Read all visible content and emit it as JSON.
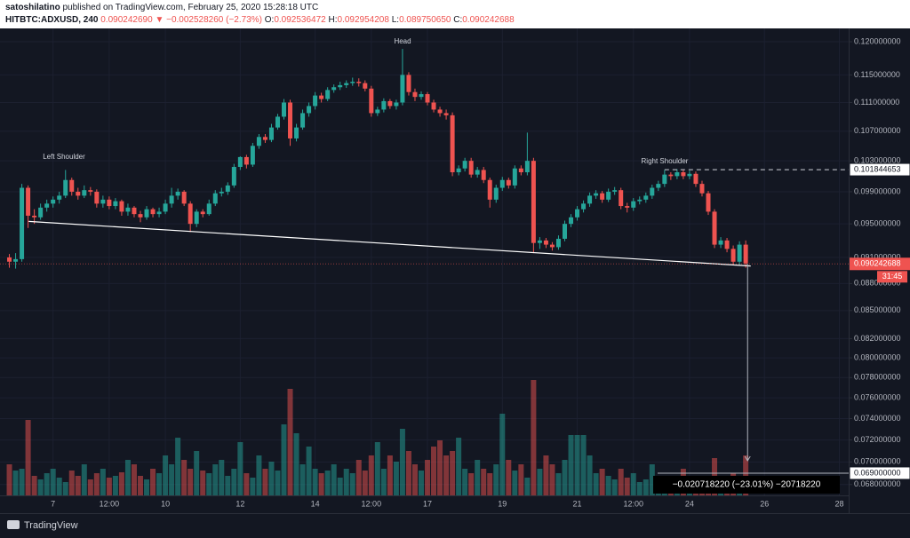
{
  "header": {
    "author": "satoshilatino",
    "published": "published on TradingView.com, February 25, 2020 15:28:18 UTC",
    "symbol": "HITBTC:ADXUSD, 240",
    "last": "0.090242690",
    "arrow": "▼",
    "change": "−0.002528260 (−2.73%)",
    "o_label": "O:",
    "o": "0.092536472",
    "h_label": "H:",
    "h": "0.092954208",
    "l_label": "L:",
    "l": "0.089750650",
    "c_label": "C:",
    "c": "0.090242688"
  },
  "chart_data": {
    "type": "candlestick",
    "log_scale": true,
    "grid": true,
    "up_color": "#26a69a",
    "down_color": "#ef5350",
    "xlim": [
      -1.5,
      134.5
    ],
    "xticks": [
      7,
      {
        "value": 16,
        "label": "12:00"
      },
      {
        "value": 25,
        "label": "10"
      },
      {
        "value": 37,
        "label": "12"
      },
      {
        "value": 49,
        "label": "14"
      },
      {
        "value": 58,
        "label": "12:00"
      },
      {
        "value": 67,
        "label": "17"
      },
      {
        "value": 79,
        "label": "19"
      },
      {
        "value": 91,
        "label": "21"
      },
      {
        "value": 100,
        "label": "12:00"
      },
      {
        "value": 109,
        "label": "24"
      },
      {
        "value": 121,
        "label": "26"
      },
      {
        "value": 133,
        "label": "28"
      }
    ],
    "ylim": [
      0.06706,
      0.12207
    ],
    "yticks": [
      {
        "value": 0.12,
        "label": "0.120000000"
      },
      {
        "value": 0.115,
        "label": "0.115000000"
      },
      {
        "value": 0.111,
        "label": "0.111000000"
      },
      {
        "value": 0.107,
        "label": "0.107000000"
      },
      {
        "value": 0.103,
        "label": "0.103000000"
      },
      {
        "value": 0.099,
        "label": "0.099000000"
      },
      {
        "value": 0.095,
        "label": "0.095000000"
      },
      {
        "value": 0.091,
        "label": "0.091000000"
      },
      {
        "value": 0.088,
        "label": "0.088000000"
      },
      {
        "value": 0.085,
        "label": "0.085000000"
      },
      {
        "value": 0.082,
        "label": "0.082000000"
      },
      {
        "value": 0.08,
        "label": "0.080000000"
      },
      {
        "value": 0.078,
        "label": "0.078000000"
      },
      {
        "value": 0.076,
        "label": "0.076000000"
      },
      {
        "value": 0.074,
        "label": "0.074000000"
      },
      {
        "value": 0.072,
        "label": "0.072000000"
      },
      {
        "value": 0.07,
        "label": "0.070000000"
      },
      {
        "value": 0.068,
        "label": "0.068000000"
      }
    ],
    "ohlc": [
      [
        0.091,
        0.0914,
        0.0898,
        0.0905
      ],
      [
        0.0905,
        0.0915,
        0.0897,
        0.0908
      ],
      [
        0.0908,
        0.1,
        0.0905,
        0.0995
      ],
      [
        0.0995,
        0.0998,
        0.0945,
        0.096
      ],
      [
        0.096,
        0.0968,
        0.095,
        0.0958
      ],
      [
        0.0958,
        0.0975,
        0.0955,
        0.097
      ],
      [
        0.097,
        0.098,
        0.0965,
        0.0975
      ],
      [
        0.0975,
        0.0984,
        0.097,
        0.098
      ],
      [
        0.098,
        0.099,
        0.0975,
        0.0985
      ],
      [
        0.0985,
        0.1018,
        0.0982,
        0.1005
      ],
      [
        0.1005,
        0.1008,
        0.0985,
        0.099
      ],
      [
        0.099,
        0.0995,
        0.098,
        0.0985
      ],
      [
        0.0985,
        0.0998,
        0.0982,
        0.0992
      ],
      [
        0.0992,
        0.0996,
        0.0985,
        0.099
      ],
      [
        0.099,
        0.0993,
        0.097,
        0.0975
      ],
      [
        0.0975,
        0.0985,
        0.097,
        0.098
      ],
      [
        0.098,
        0.0984,
        0.0968,
        0.0972
      ],
      [
        0.0972,
        0.0982,
        0.0968,
        0.0978
      ],
      [
        0.0978,
        0.098,
        0.096,
        0.0965
      ],
      [
        0.0965,
        0.0975,
        0.096,
        0.097
      ],
      [
        0.097,
        0.0972,
        0.0958,
        0.0962
      ],
      [
        0.0962,
        0.0966,
        0.0952,
        0.0958
      ],
      [
        0.0958,
        0.0972,
        0.0955,
        0.0968
      ],
      [
        0.0968,
        0.097,
        0.0958,
        0.0962
      ],
      [
        0.0962,
        0.097,
        0.0958,
        0.0965
      ],
      [
        0.0965,
        0.098,
        0.0962,
        0.0975
      ],
      [
        0.0975,
        0.0995,
        0.097,
        0.0985
      ],
      [
        0.0985,
        0.0994,
        0.098,
        0.099
      ],
      [
        0.099,
        0.0992,
        0.0972,
        0.0975
      ],
      [
        0.0975,
        0.0978,
        0.094,
        0.095
      ],
      [
        0.095,
        0.0968,
        0.0946,
        0.0965
      ],
      [
        0.0965,
        0.0968,
        0.0958,
        0.0962
      ],
      [
        0.0962,
        0.098,
        0.096,
        0.0975
      ],
      [
        0.0975,
        0.0992,
        0.0972,
        0.0988
      ],
      [
        0.0988,
        0.0995,
        0.0984,
        0.099
      ],
      [
        0.099,
        0.1002,
        0.0986,
        0.0998
      ],
      [
        0.0998,
        0.1026,
        0.0995,
        0.1022
      ],
      [
        0.1022,
        0.1036,
        0.1018,
        0.1035
      ],
      [
        0.1035,
        0.1038,
        0.102,
        0.1025
      ],
      [
        0.1025,
        0.1054,
        0.1022,
        0.105
      ],
      [
        0.105,
        0.1066,
        0.1046,
        0.1062
      ],
      [
        0.1062,
        0.1066,
        0.1054,
        0.1058
      ],
      [
        0.1058,
        0.108,
        0.1055,
        0.1075
      ],
      [
        0.1075,
        0.1094,
        0.1072,
        0.109
      ],
      [
        0.109,
        0.1115,
        0.1086,
        0.111
      ],
      [
        0.111,
        0.1114,
        0.105,
        0.106
      ],
      [
        0.106,
        0.108,
        0.1056,
        0.1075
      ],
      [
        0.1075,
        0.11,
        0.1072,
        0.1095
      ],
      [
        0.1095,
        0.111,
        0.109,
        0.1105
      ],
      [
        0.1105,
        0.1125,
        0.11,
        0.112
      ],
      [
        0.112,
        0.1124,
        0.111,
        0.1115
      ],
      [
        0.1115,
        0.1132,
        0.1112,
        0.1128
      ],
      [
        0.1128,
        0.1136,
        0.1124,
        0.1132
      ],
      [
        0.1132,
        0.114,
        0.1128,
        0.1135
      ],
      [
        0.1135,
        0.1142,
        0.1131,
        0.1138
      ],
      [
        0.1138,
        0.1146,
        0.1134,
        0.114
      ],
      [
        0.114,
        0.1145,
        0.1133,
        0.1138
      ],
      [
        0.1138,
        0.1142,
        0.1126,
        0.113
      ],
      [
        0.113,
        0.1134,
        0.109,
        0.1095
      ],
      [
        0.1095,
        0.1104,
        0.1091,
        0.11
      ],
      [
        0.11,
        0.1116,
        0.1096,
        0.1112
      ],
      [
        0.1112,
        0.1115,
        0.1101,
        0.1105
      ],
      [
        0.1105,
        0.1114,
        0.11,
        0.111
      ],
      [
        0.111,
        0.1189,
        0.1106,
        0.115
      ],
      [
        0.115,
        0.1154,
        0.112,
        0.1125
      ],
      [
        0.1125,
        0.113,
        0.1112,
        0.1118
      ],
      [
        0.1118,
        0.1126,
        0.1114,
        0.1122
      ],
      [
        0.1122,
        0.1125,
        0.1106,
        0.111
      ],
      [
        0.111,
        0.1114,
        0.1096,
        0.11
      ],
      [
        0.11,
        0.1104,
        0.109,
        0.1095
      ],
      [
        0.1095,
        0.11,
        0.1086,
        0.1092
      ],
      [
        0.1092,
        0.1096,
        0.101,
        0.1015
      ],
      [
        0.1015,
        0.1024,
        0.1011,
        0.102
      ],
      [
        0.102,
        0.1034,
        0.1016,
        0.103
      ],
      [
        0.103,
        0.1034,
        0.1008,
        0.1012
      ],
      [
        0.1012,
        0.1022,
        0.1008,
        0.1018
      ],
      [
        0.1018,
        0.1022,
        0.1001,
        0.1005
      ],
      [
        0.1005,
        0.1008,
        0.097,
        0.098
      ],
      [
        0.098,
        0.0999,
        0.0976,
        0.0995
      ],
      [
        0.0995,
        0.1009,
        0.0991,
        0.1005
      ],
      [
        0.1005,
        0.1008,
        0.0994,
        0.0998
      ],
      [
        0.0998,
        0.1024,
        0.0994,
        0.102
      ],
      [
        0.102,
        0.1024,
        0.1011,
        0.1015
      ],
      [
        0.1015,
        0.1068,
        0.1011,
        0.103
      ],
      [
        0.103,
        0.1034,
        0.0915,
        0.0927
      ],
      [
        0.0927,
        0.0934,
        0.092,
        0.093
      ],
      [
        0.093,
        0.0933,
        0.0921,
        0.0925
      ],
      [
        0.0925,
        0.0928,
        0.0918,
        0.0922
      ],
      [
        0.0922,
        0.0936,
        0.0919,
        0.0932
      ],
      [
        0.0932,
        0.0954,
        0.0929,
        0.095
      ],
      [
        0.095,
        0.0962,
        0.0946,
        0.0958
      ],
      [
        0.0958,
        0.0972,
        0.0954,
        0.0968
      ],
      [
        0.0968,
        0.0979,
        0.0964,
        0.0975
      ],
      [
        0.0975,
        0.0989,
        0.0971,
        0.0985
      ],
      [
        0.0985,
        0.0992,
        0.0981,
        0.0988
      ],
      [
        0.0988,
        0.0991,
        0.0976,
        0.098
      ],
      [
        0.098,
        0.0994,
        0.0977,
        0.099
      ],
      [
        0.099,
        0.0996,
        0.0986,
        0.0992
      ],
      [
        0.0992,
        0.0995,
        0.0968,
        0.0972
      ],
      [
        0.0972,
        0.0976,
        0.0964,
        0.097
      ],
      [
        0.097,
        0.0982,
        0.0966,
        0.0978
      ],
      [
        0.0978,
        0.0984,
        0.0974,
        0.098
      ],
      [
        0.098,
        0.0989,
        0.0976,
        0.0985
      ],
      [
        0.0985,
        0.0999,
        0.0981,
        0.0995
      ],
      [
        0.0995,
        0.1004,
        0.0991,
        0.1
      ],
      [
        0.1,
        0.1018,
        0.0996,
        0.1012
      ],
      [
        0.1012,
        0.1015,
        0.1005,
        0.101
      ],
      [
        0.101,
        0.1019,
        0.1006,
        0.1015
      ],
      [
        0.1015,
        0.1018,
        0.1006,
        0.101
      ],
      [
        0.101,
        0.1017,
        0.1006,
        0.1013
      ],
      [
        0.1013,
        0.1016,
        0.0996,
        0.1
      ],
      [
        0.1,
        0.1004,
        0.0984,
        0.0988
      ],
      [
        0.0988,
        0.0991,
        0.0961,
        0.0965
      ],
      [
        0.0965,
        0.0968,
        0.0921,
        0.0925
      ],
      [
        0.0925,
        0.0934,
        0.0921,
        0.093
      ],
      [
        0.093,
        0.0933,
        0.0916,
        0.092
      ],
      [
        0.092,
        0.0924,
        0.0901,
        0.0905
      ],
      [
        0.0905,
        0.0929,
        0.0901,
        0.0925
      ],
      [
        0.0925,
        0.093,
        0.0898,
        0.0903
      ]
    ],
    "volume": [
      35,
      28,
      30,
      85,
      22,
      18,
      25,
      30,
      20,
      15,
      28,
      22,
      35,
      18,
      25,
      30,
      20,
      22,
      26,
      40,
      35,
      22,
      18,
      30,
      25,
      45,
      35,
      65,
      40,
      30,
      50,
      28,
      25,
      35,
      40,
      22,
      30,
      60,
      25,
      20,
      45,
      30,
      38,
      28,
      80,
      120,
      70,
      35,
      55,
      30,
      25,
      28,
      35,
      20,
      30,
      25,
      40,
      28,
      45,
      60,
      30,
      45,
      38,
      75,
      50,
      35,
      28,
      40,
      55,
      62,
      45,
      50,
      65,
      30,
      25,
      40,
      30,
      25,
      35,
      92,
      40,
      28,
      35,
      20,
      130,
      30,
      45,
      35,
      25,
      40,
      68,
      68,
      68,
      45,
      25,
      30,
      22,
      18,
      30,
      20,
      25,
      15,
      18,
      35,
      22,
      12,
      18,
      15,
      30,
      10,
      8,
      15,
      20,
      42,
      12,
      18,
      25,
      10,
      45
    ],
    "annotations": [
      "Left Shoulder",
      "Head",
      "Right Shoulder"
    ],
    "neckline": [
      [
        3.1,
        0.0953
      ],
      [
        118.8,
        0.09
      ]
    ],
    "level_line": 0.101844653,
    "last_price": 0.090242688,
    "countdown": "31:45",
    "target": {
      "value": 0.069,
      "label": "0.069000000"
    },
    "measure": "−0.020718220 (−23.01%) −20718220"
  },
  "footer": {
    "brand": "TradingView"
  }
}
